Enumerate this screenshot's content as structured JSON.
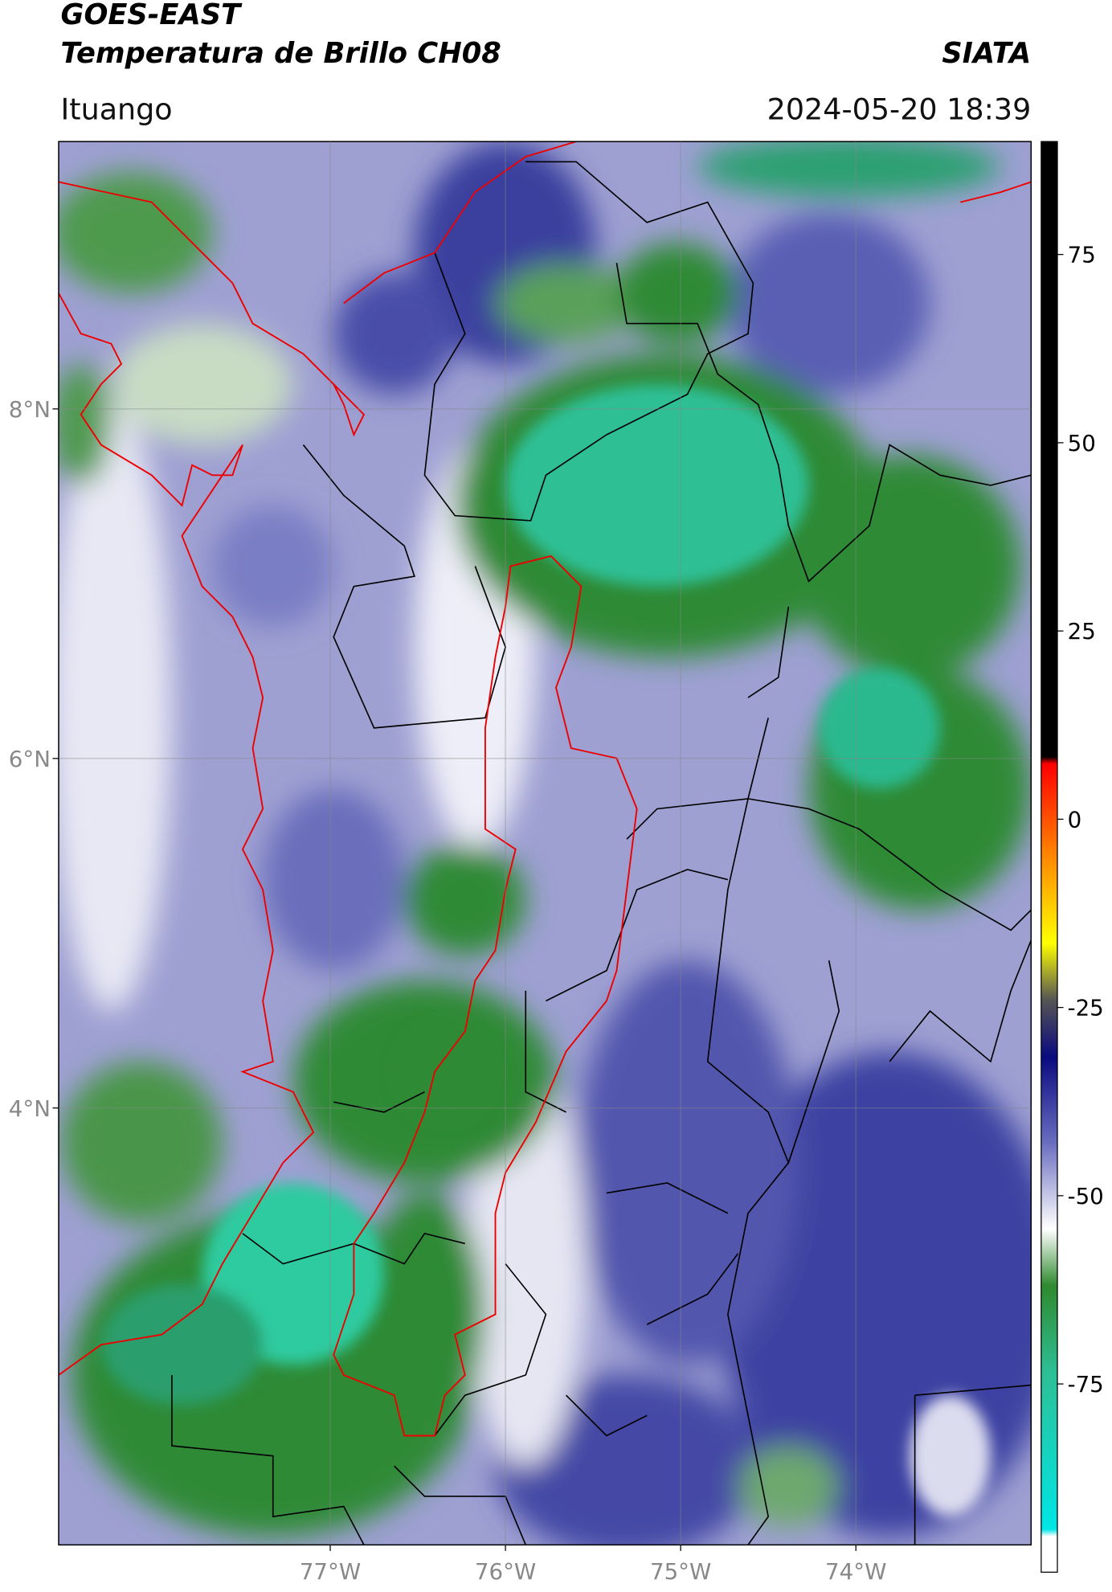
{
  "header": {
    "title": "GOES-EAST",
    "subtitle": "Temperatura de Brillo CH08",
    "brand": "SIATA",
    "location": "Ituango",
    "datetime": "2024-05-20 18:39"
  },
  "map": {
    "xlim": [
      -78.55,
      -73
    ],
    "ylim": [
      1.5,
      9.53
    ],
    "xticks": [
      {
        "value": -77,
        "label": "77°W"
      },
      {
        "value": -76,
        "label": "76°W"
      },
      {
        "value": -75,
        "label": "75°W"
      },
      {
        "value": -74,
        "label": "74°W"
      }
    ],
    "yticks": [
      {
        "value": 8,
        "label": "8°N"
      },
      {
        "value": 6,
        "label": "6°N"
      },
      {
        "value": 4,
        "label": "4°N"
      }
    ],
    "grid": true
  },
  "colorbar": {
    "lim": [
      -100,
      90
    ],
    "ticks": [
      75,
      50,
      25,
      0,
      -25,
      -50,
      -75
    ]
  }
}
